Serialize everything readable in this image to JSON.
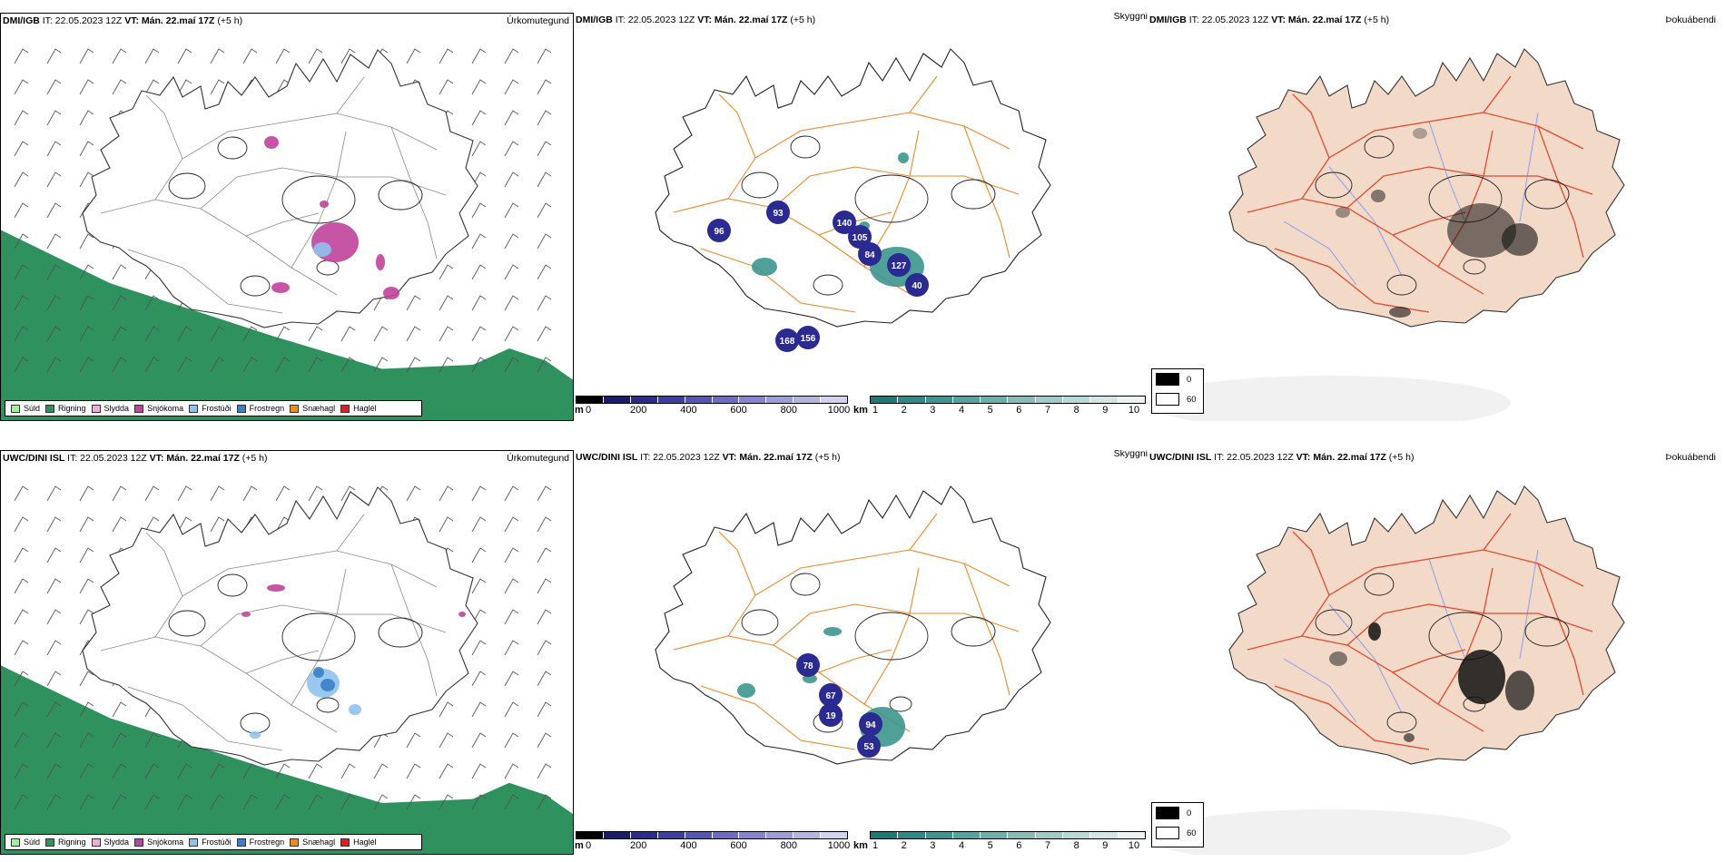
{
  "colors": {
    "sea_green": "#2f915e",
    "road_orange": "#e8892f",
    "land_peach": "#f3dac8",
    "road_red": "#e14a2f",
    "river_blue": "#8a9df0"
  },
  "rows": [
    {
      "model_label": "DMI/IGB",
      "it_text": "IT: 22.05.2023 12Z",
      "vt_label": "VT: Mán. 22.maí 17Z",
      "offset_text": "(+5 h)",
      "precip_title": "Úrkomutegund",
      "cloud_title": "Skyggni",
      "fog_title": "Þokuábendi",
      "cloud_values": [
        "93",
        "140",
        "105",
        "84",
        "127",
        "40",
        "168",
        "156",
        "96"
      ]
    },
    {
      "model_label": "UWC/DINI ISL",
      "it_text": "IT: 22.05.2023 12Z",
      "vt_label": "VT: Mán. 22.maí 17Z",
      "offset_text": "(+5 h)",
      "precip_title": "Úrkomutegund",
      "cloud_title": "Skyggni",
      "fog_title": "Þokuábendi",
      "cloud_values": [
        "78",
        "67",
        "19",
        "94",
        "53"
      ]
    }
  ],
  "precip_legend": [
    {
      "label": "Súld",
      "color": "#9ff09f"
    },
    {
      "label": "Rigning",
      "color": "#2f915e"
    },
    {
      "label": "Slydda",
      "color": "#f4a9d6"
    },
    {
      "label": "Snjókoma",
      "color": "#c0449b"
    },
    {
      "label": "Frostúði",
      "color": "#8ec2f0"
    },
    {
      "label": "Frostregn",
      "color": "#3c7fc8"
    },
    {
      "label": "Snæhagl",
      "color": "#f08c14"
    },
    {
      "label": "Haglél",
      "color": "#e02020"
    }
  ],
  "ceiling_bar": {
    "unit": "m",
    "ticks": [
      "0",
      "200",
      "400",
      "600",
      "800",
      "1000"
    ],
    "colors": [
      "#000000",
      "#1a1a6e",
      "#2a2a90",
      "#3d3da8",
      "#5555b8",
      "#6c6cc4",
      "#8484d0",
      "#9c9cda",
      "#b4b4e4",
      "#d2d2ef"
    ]
  },
  "visibility_bar": {
    "unit": "km",
    "ticks": [
      "1",
      "2",
      "3",
      "4",
      "5",
      "6",
      "7",
      "8",
      "9",
      "10"
    ],
    "colors": [
      "#1f7a74",
      "#2e8a84",
      "#3d968f",
      "#54a39c",
      "#6cb0aa",
      "#85bdb8",
      "#9fcbc6",
      "#b9d9d5",
      "#d2e7e4",
      "#ebf4f2"
    ]
  },
  "fog_legend": [
    {
      "value": "0",
      "color": "#000000"
    },
    {
      "value": "60",
      "color": "#ffffff"
    }
  ]
}
